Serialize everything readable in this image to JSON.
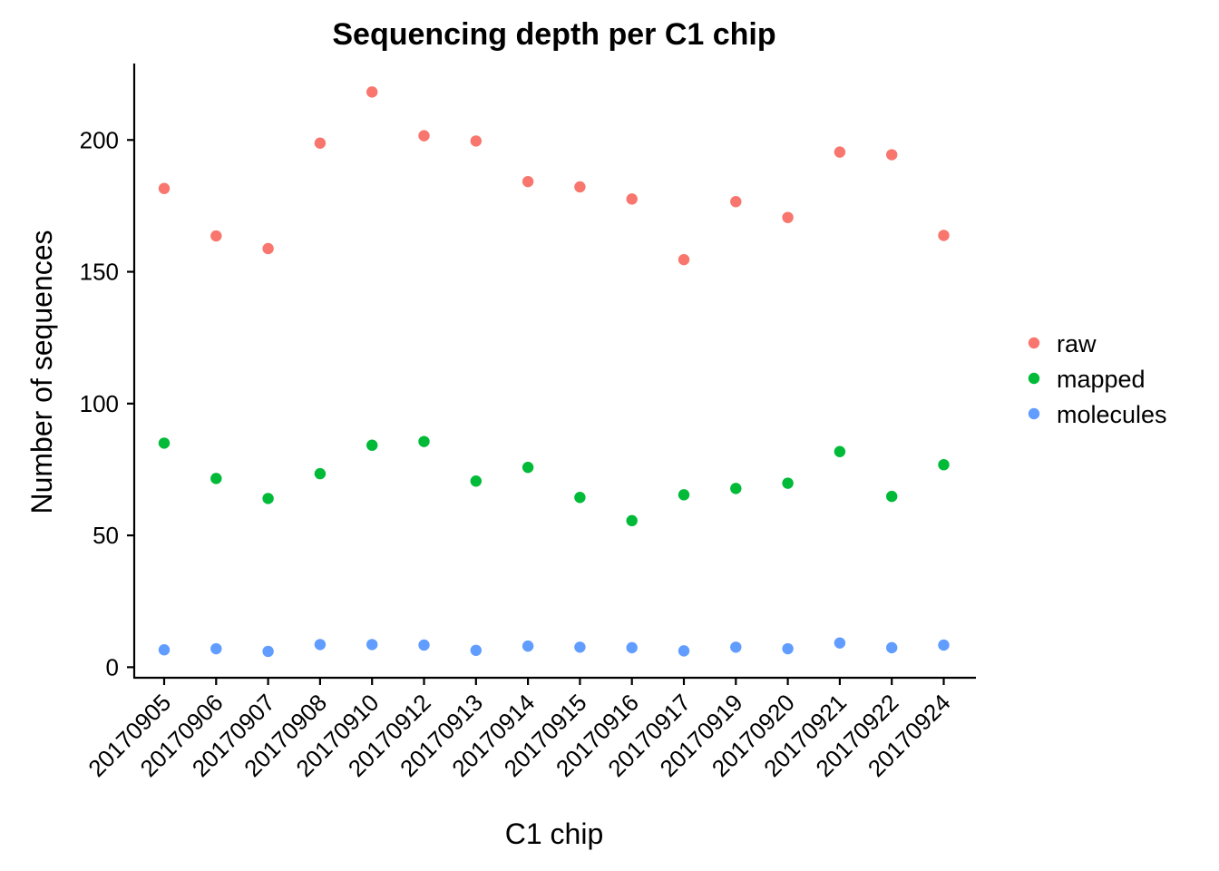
{
  "chart_data": {
    "type": "scatter",
    "title": "Sequencing depth per C1 chip",
    "xlabel": "C1 chip",
    "ylabel": "Number of sequences",
    "categories": [
      "20170905",
      "20170906",
      "20170907",
      "20170908",
      "20170910",
      "20170912",
      "20170913",
      "20170914",
      "20170915",
      "20170916",
      "20170917",
      "20170919",
      "20170920",
      "20170921",
      "20170922",
      "20170924"
    ],
    "ylim": [
      -4,
      229
    ],
    "yticks": [
      0,
      50,
      100,
      150,
      200
    ],
    "grid": false,
    "legend_position": "right",
    "series": [
      {
        "name": "raw",
        "color": "#F8766D",
        "values": [
          181.6,
          163.6,
          158.8,
          198.8,
          218.2,
          201.6,
          199.6,
          184.2,
          182.2,
          177.6,
          154.6,
          176.6,
          170.6,
          195.4,
          194.4,
          163.8
        ]
      },
      {
        "name": "mapped",
        "color": "#00BA38",
        "values": [
          85.0,
          71.6,
          64.0,
          73.4,
          84.2,
          85.6,
          70.6,
          75.8,
          64.4,
          55.6,
          65.4,
          67.8,
          69.8,
          81.8,
          64.8,
          76.8
        ]
      },
      {
        "name": "molecules",
        "color": "#619CFF",
        "values": [
          6.6,
          7.0,
          6.0,
          8.6,
          8.6,
          8.4,
          6.4,
          8.0,
          7.6,
          7.4,
          6.2,
          7.6,
          7.0,
          9.2,
          7.4,
          8.4
        ]
      }
    ]
  }
}
